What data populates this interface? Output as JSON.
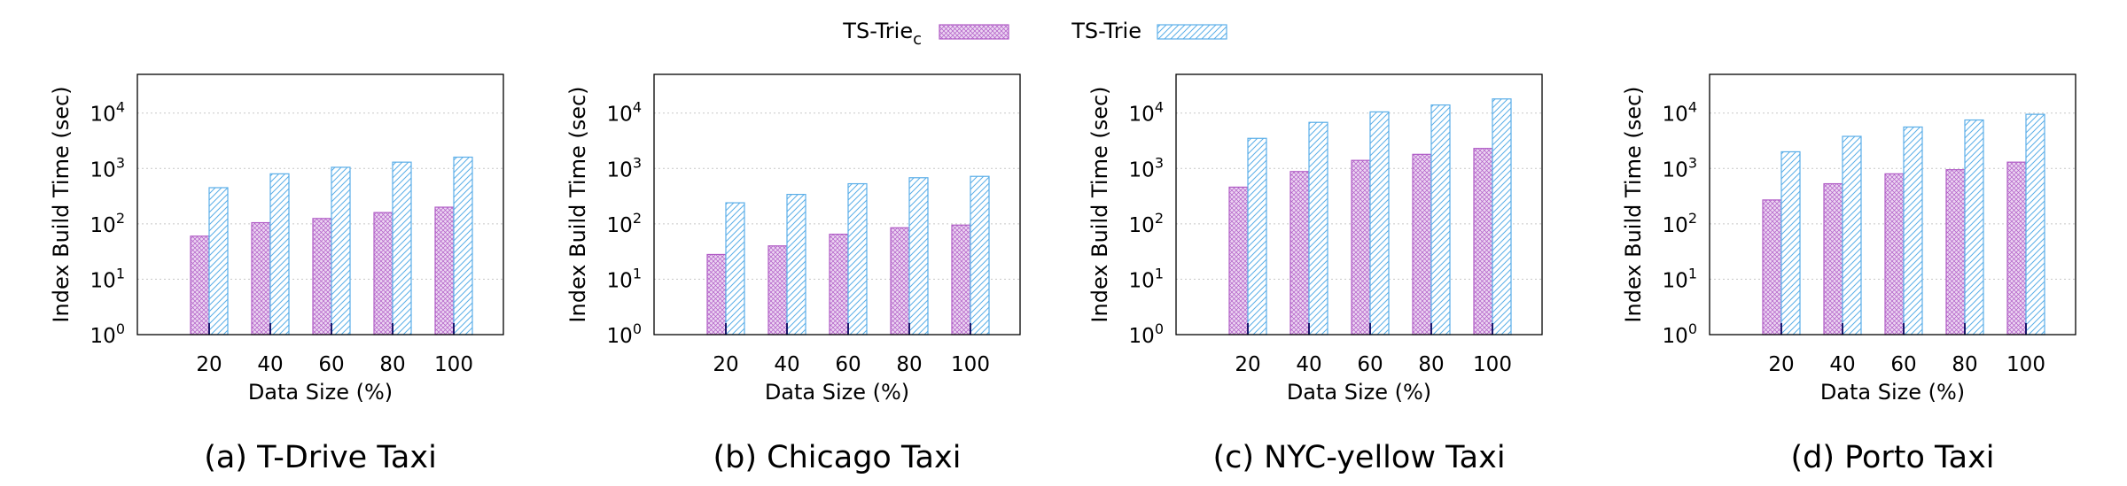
{
  "legend": {
    "items": [
      {
        "label": "TS-Trie",
        "subscript": "c",
        "series": "trie_c"
      },
      {
        "label": "TS-Trie",
        "subscript": "",
        "series": "trie"
      }
    ]
  },
  "colors": {
    "trie_c_stroke": "#b05cc6",
    "trie_c_fill": "#ecd6f2",
    "trie_stroke": "#5aaee8",
    "trie_fill": "#ffffff",
    "grid": "#c8c8c8",
    "axis": "#000000"
  },
  "chart_data": [
    {
      "type": "bar",
      "log_scale": true,
      "grid": true,
      "title": "(a) T-Drive Taxi",
      "xlabel": "Data Size (%)",
      "ylabel": "Index Build Time (sec)",
      "categories": [
        "20",
        "40",
        "60",
        "80",
        "100"
      ],
      "ylim": [
        1,
        50000
      ],
      "yticks": [
        {
          "base": "10",
          "exp": "0",
          "value": 1
        },
        {
          "base": "10",
          "exp": "1",
          "value": 10
        },
        {
          "base": "10",
          "exp": "2",
          "value": 100
        },
        {
          "base": "10",
          "exp": "3",
          "value": 1000
        },
        {
          "base": "10",
          "exp": "4",
          "value": 10000
        }
      ],
      "series": [
        {
          "id": "trie_c",
          "values": [
            60,
            105,
            125,
            160,
            200
          ]
        },
        {
          "id": "trie",
          "values": [
            450,
            800,
            1050,
            1300,
            1600
          ]
        }
      ]
    },
    {
      "type": "bar",
      "log_scale": true,
      "grid": true,
      "title": "(b) Chicago Taxi",
      "xlabel": "Data Size (%)",
      "ylabel": "Index Build Time (sec)",
      "categories": [
        "20",
        "40",
        "60",
        "80",
        "100"
      ],
      "ylim": [
        1,
        50000
      ],
      "yticks": [
        {
          "base": "10",
          "exp": "0",
          "value": 1
        },
        {
          "base": "10",
          "exp": "1",
          "value": 10
        },
        {
          "base": "10",
          "exp": "2",
          "value": 100
        },
        {
          "base": "10",
          "exp": "3",
          "value": 1000
        },
        {
          "base": "10",
          "exp": "4",
          "value": 10000
        }
      ],
      "series": [
        {
          "id": "trie_c",
          "values": [
            28,
            40,
            65,
            85,
            95
          ]
        },
        {
          "id": "trie",
          "values": [
            240,
            340,
            530,
            680,
            720
          ]
        }
      ]
    },
    {
      "type": "bar",
      "log_scale": true,
      "grid": true,
      "title": "(c) NYC-yellow Taxi",
      "xlabel": "Data Size (%)",
      "ylabel": "Index Build Time (sec)",
      "categories": [
        "20",
        "40",
        "60",
        "80",
        "100"
      ],
      "ylim": [
        1,
        50000
      ],
      "yticks": [
        {
          "base": "10",
          "exp": "0",
          "value": 1
        },
        {
          "base": "10",
          "exp": "1",
          "value": 10
        },
        {
          "base": "10",
          "exp": "2",
          "value": 100
        },
        {
          "base": "10",
          "exp": "3",
          "value": 1000
        },
        {
          "base": "10",
          "exp": "4",
          "value": 10000
        }
      ],
      "series": [
        {
          "id": "trie_c",
          "values": [
            460,
            880,
            1400,
            1800,
            2300
          ]
        },
        {
          "id": "trie",
          "values": [
            3500,
            6800,
            10500,
            14000,
            18000
          ]
        }
      ]
    },
    {
      "type": "bar",
      "log_scale": true,
      "grid": true,
      "title": "(d) Porto Taxi",
      "xlabel": "Data Size (%)",
      "ylabel": "Index Build Time (sec)",
      "categories": [
        "20",
        "40",
        "60",
        "80",
        "100"
      ],
      "ylim": [
        1,
        50000
      ],
      "yticks": [
        {
          "base": "10",
          "exp": "0",
          "value": 1
        },
        {
          "base": "10",
          "exp": "1",
          "value": 10
        },
        {
          "base": "10",
          "exp": "2",
          "value": 100
        },
        {
          "base": "10",
          "exp": "3",
          "value": 1000
        },
        {
          "base": "10",
          "exp": "4",
          "value": 10000
        }
      ],
      "series": [
        {
          "id": "trie_c",
          "values": [
            270,
            530,
            800,
            950,
            1300
          ]
        },
        {
          "id": "trie",
          "values": [
            2000,
            3800,
            5600,
            7500,
            9500
          ]
        }
      ]
    }
  ]
}
